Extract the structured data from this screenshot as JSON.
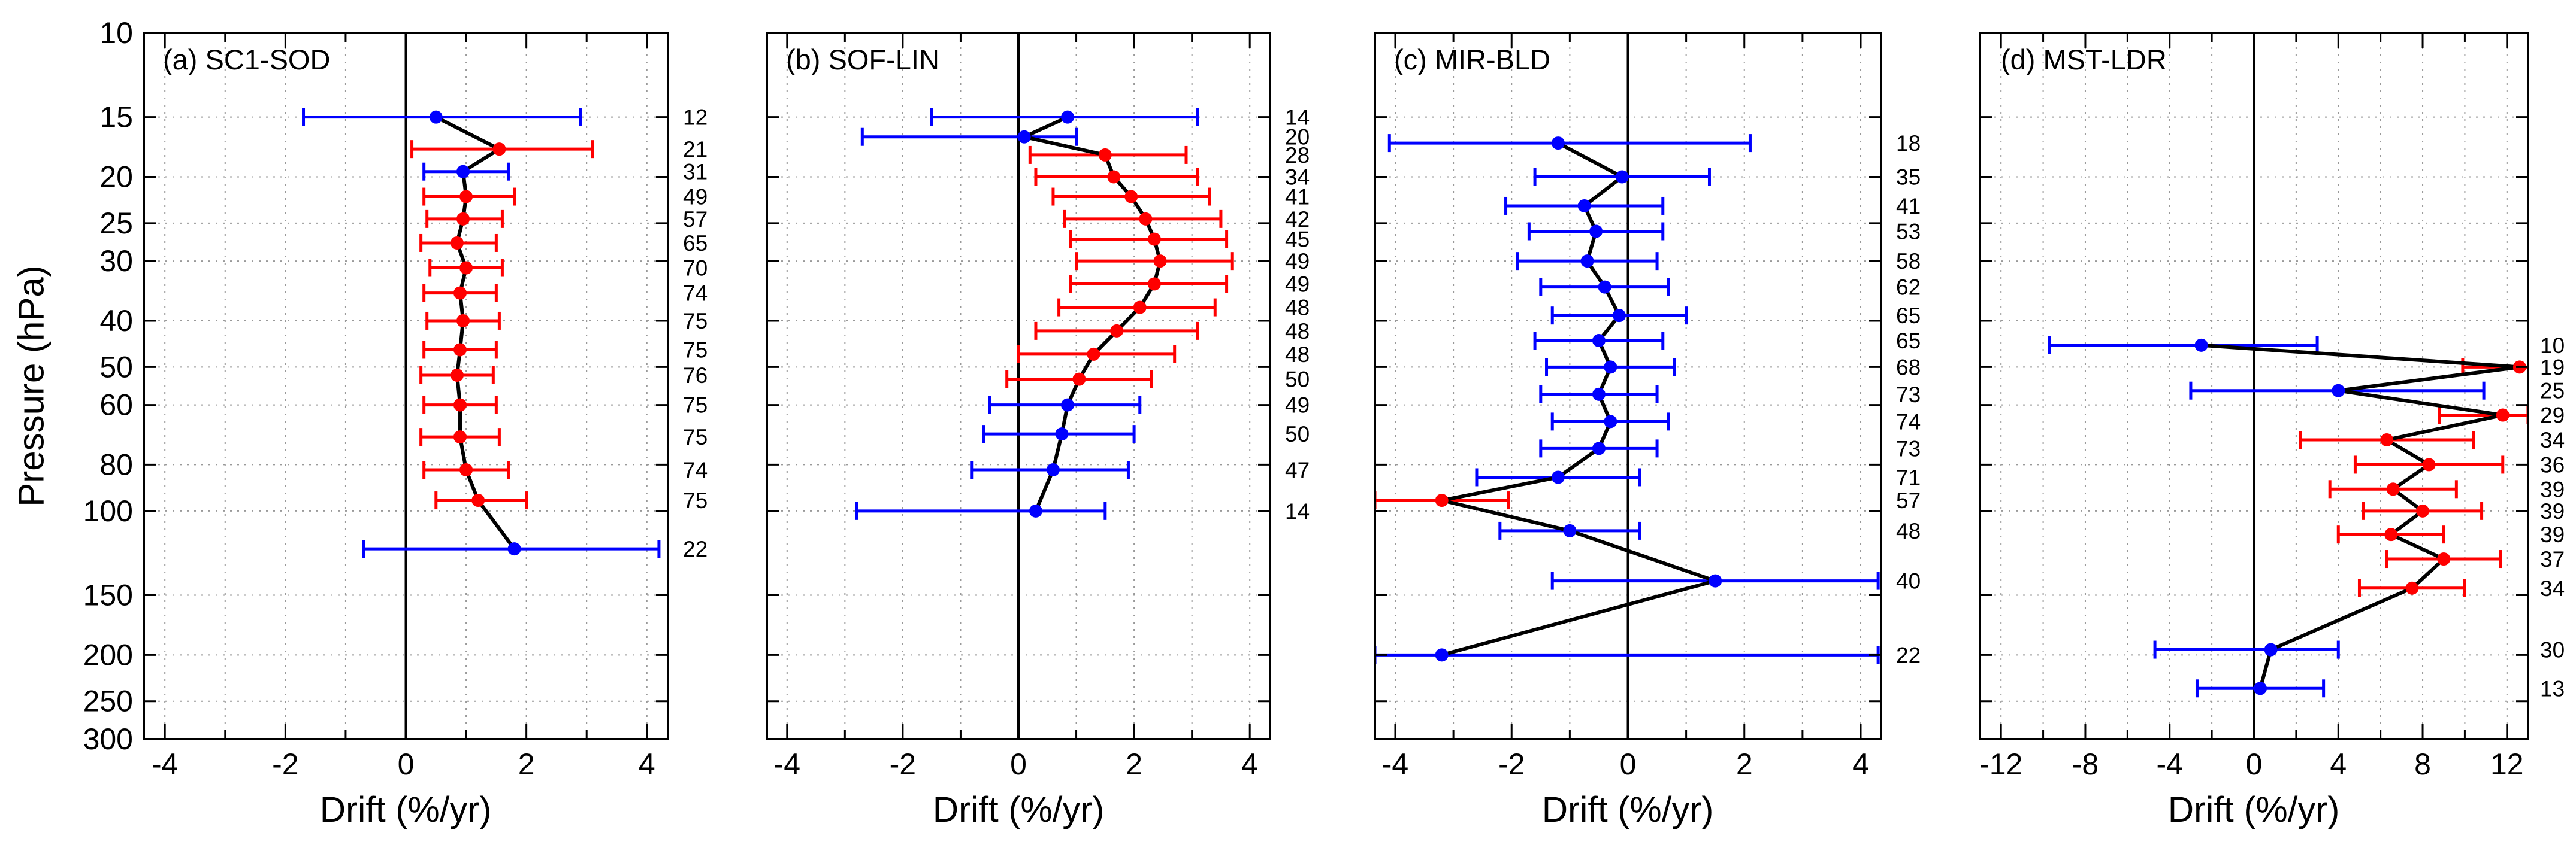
{
  "figure": {
    "ylabel": "Pressure (hPa)",
    "yticks": [
      10,
      15,
      20,
      25,
      30,
      40,
      50,
      60,
      80,
      100,
      150,
      200,
      250,
      300
    ],
    "ylim": [
      10,
      300
    ],
    "yscale": "log",
    "colors": {
      "red": "#ff0000",
      "blue": "#0000ff",
      "line": "#000000",
      "grid": "#999999"
    }
  },
  "chart_data": [
    {
      "type": "scatter",
      "title": "(a) SC1-SOD",
      "xlabel": "Drift (%/yr)",
      "ylabel": "Pressure (hPa)",
      "yscale": "log",
      "ylim": [
        10,
        300
      ],
      "xlim": [
        -4.35,
        4.35
      ],
      "xticks": [
        -4,
        -2,
        0,
        2,
        4
      ],
      "grid_step": 1,
      "legend": "none",
      "grid": "dotted",
      "points": {
        "p": [
          15,
          17.5,
          19.5,
          22,
          24.5,
          27.5,
          31,
          35,
          40,
          46,
          52,
          60,
          70,
          82,
          95,
          120
        ],
        "v": [
          0.5,
          1.55,
          0.95,
          1.0,
          0.95,
          0.85,
          1.0,
          0.9,
          0.95,
          0.9,
          0.85,
          0.9,
          0.9,
          1.0,
          1.2,
          1.8
        ],
        "lo": [
          -1.7,
          0.1,
          0.3,
          0.3,
          0.35,
          0.25,
          0.4,
          0.3,
          0.35,
          0.3,
          0.25,
          0.3,
          0.25,
          0.3,
          0.5,
          -0.7
        ],
        "hi": [
          2.9,
          3.1,
          1.7,
          1.8,
          1.6,
          1.5,
          1.6,
          1.5,
          1.55,
          1.5,
          1.45,
          1.5,
          1.55,
          1.7,
          2.0,
          4.2
        ],
        "color": [
          "blue",
          "red",
          "blue",
          "red",
          "red",
          "red",
          "red",
          "red",
          "red",
          "red",
          "red",
          "red",
          "red",
          "red",
          "red",
          "blue"
        ],
        "n": [
          12,
          21,
          31,
          49,
          57,
          65,
          70,
          74,
          75,
          75,
          76,
          75,
          75,
          74,
          75,
          22
        ]
      }
    },
    {
      "type": "scatter",
      "title": "(b) SOF-LIN",
      "xlabel": "Drift (%/yr)",
      "ylabel": "Pressure (hPa)",
      "yscale": "log",
      "ylim": [
        10,
        300
      ],
      "xlim": [
        -4.35,
        4.35
      ],
      "xticks": [
        -4,
        -2,
        0,
        2,
        4
      ],
      "grid_step": 1,
      "legend": "none",
      "grid": "dotted",
      "points": {
        "p": [
          15,
          16.5,
          18,
          20,
          22,
          24.5,
          27,
          30,
          33.5,
          37.5,
          42,
          47,
          53,
          60,
          69,
          82,
          100
        ],
        "v": [
          0.85,
          0.1,
          1.5,
          1.65,
          1.95,
          2.2,
          2.35,
          2.45,
          2.35,
          2.1,
          1.7,
          1.3,
          1.05,
          0.85,
          0.75,
          0.6,
          0.3
        ],
        "lo": [
          -1.5,
          -2.7,
          0.2,
          0.3,
          0.6,
          0.8,
          0.9,
          1.0,
          0.9,
          0.7,
          0.3,
          0.0,
          -0.2,
          -0.5,
          -0.6,
          -0.8,
          -2.8
        ],
        "hi": [
          3.1,
          1.0,
          2.9,
          3.1,
          3.3,
          3.5,
          3.6,
          3.7,
          3.6,
          3.4,
          3.1,
          2.7,
          2.3,
          2.1,
          2.0,
          1.9,
          1.5
        ],
        "color": [
          "blue",
          "blue",
          "red",
          "red",
          "red",
          "red",
          "red",
          "red",
          "red",
          "red",
          "red",
          "red",
          "red",
          "blue",
          "blue",
          "blue",
          "blue"
        ],
        "n": [
          14,
          20,
          28,
          34,
          41,
          42,
          45,
          49,
          49,
          48,
          48,
          48,
          50,
          49,
          50,
          47,
          14
        ]
      }
    },
    {
      "type": "scatter",
      "title": "(c) MIR-BLD",
      "xlabel": "Drift (%/yr)",
      "ylabel": "Pressure (hPa)",
      "yscale": "log",
      "ylim": [
        10,
        300
      ],
      "xlim": [
        -4.35,
        4.35
      ],
      "xticks": [
        -4,
        -2,
        0,
        2,
        4
      ],
      "grid_step": 1,
      "legend": "none",
      "grid": "dotted",
      "points": {
        "p": [
          17,
          20,
          23,
          26,
          30,
          34,
          39,
          44,
          50,
          57,
          65,
          74,
          85,
          95,
          110,
          140,
          200
        ],
        "v": [
          -1.2,
          -0.1,
          -0.75,
          -0.55,
          -0.7,
          -0.4,
          -0.15,
          -0.5,
          -0.3,
          -0.5,
          -0.3,
          -0.5,
          -1.2,
          -3.2,
          -1.0,
          1.5,
          -3.2
        ],
        "lo": [
          -4.1,
          -1.6,
          -2.1,
          -1.7,
          -1.9,
          -1.5,
          -1.3,
          -1.6,
          -1.4,
          -1.5,
          -1.3,
          -1.5,
          -2.6,
          -4.35,
          -2.2,
          -1.3,
          -4.35
        ],
        "hi": [
          2.1,
          1.4,
          0.6,
          0.6,
          0.5,
          0.7,
          1.0,
          0.6,
          0.8,
          0.5,
          0.7,
          0.5,
          0.2,
          -2.05,
          0.2,
          4.3,
          4.3
        ],
        "color": [
          "blue",
          "blue",
          "blue",
          "blue",
          "blue",
          "blue",
          "blue",
          "blue",
          "blue",
          "blue",
          "blue",
          "blue",
          "blue",
          "red",
          "blue",
          "blue",
          "blue"
        ],
        "n": [
          18,
          35,
          41,
          53,
          58,
          62,
          65,
          65,
          68,
          73,
          74,
          73,
          71,
          57,
          48,
          40,
          22
        ]
      }
    },
    {
      "type": "scatter",
      "title": "(d) MST-LDR",
      "xlabel": "Drift (%/yr)",
      "ylabel": "Pressure (hPa)",
      "yscale": "log",
      "ylim": [
        10,
        300
      ],
      "xlim": [
        -13,
        13
      ],
      "xticks": [
        -12,
        -8,
        -4,
        0,
        4,
        8,
        12
      ],
      "grid_step": 2,
      "legend": "none",
      "grid": "dotted",
      "points": {
        "p": [
          45,
          50,
          56,
          63,
          71,
          80,
          90,
          100,
          112,
          126,
          145,
          195,
          235
        ],
        "v": [
          -2.5,
          12.6,
          4.0,
          11.8,
          6.3,
          8.3,
          6.6,
          8.0,
          6.5,
          9.0,
          7.5,
          0.8,
          0.3
        ],
        "lo": [
          -9.7,
          9.9,
          -3.0,
          8.8,
          2.2,
          4.8,
          3.6,
          5.2,
          4.0,
          6.3,
          5.0,
          -4.7,
          -2.7
        ],
        "hi": [
          3.0,
          13.3,
          10.9,
          13.0,
          10.4,
          11.8,
          9.6,
          10.8,
          9.0,
          11.7,
          10.0,
          4.0,
          3.3
        ],
        "color": [
          "blue",
          "red",
          "blue",
          "red",
          "red",
          "red",
          "red",
          "red",
          "red",
          "red",
          "red",
          "blue",
          "blue"
        ],
        "n": [
          10,
          19,
          25,
          29,
          34,
          36,
          39,
          39,
          39,
          37,
          34,
          30,
          13
        ]
      }
    }
  ]
}
